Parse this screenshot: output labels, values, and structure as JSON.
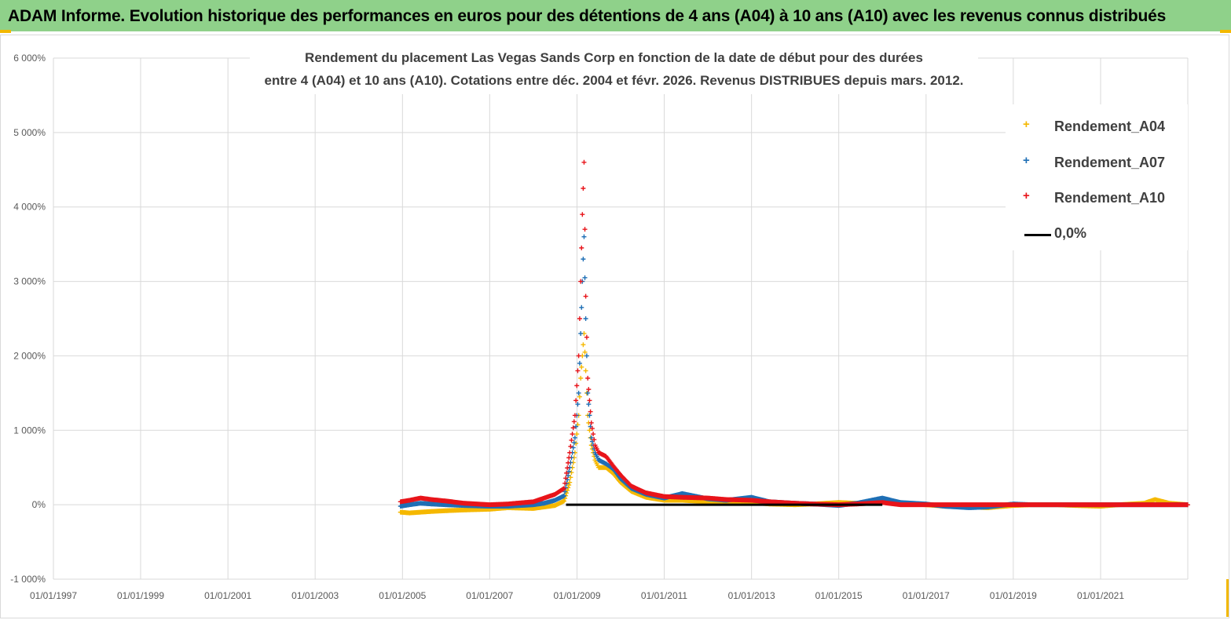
{
  "banner": {
    "text": "ADAM Informe. Evolution historique des performances en euros pour des détentions de 4 ans (A04) à 10 ans (A10) avec les revenus connus distribués"
  },
  "colors": {
    "banner_bg": "#8fd18a",
    "A04": "#f5b800",
    "A07": "#1f6fb5",
    "A10": "#e8141a",
    "zero_line": "#000000"
  },
  "chart_data": {
    "type": "scatter",
    "title_lines": [
      "Rendement du placement Las Vegas Sands Corp en fonction de la date de début pour des durées",
      "entre 4 (A04) et 10 ans (A10).  Cotations entre déc. 2004 et févr. 2026. Revenus DISTRIBUES  depuis mars. 2012."
    ],
    "xlabel": "",
    "ylabel": "",
    "x_ticks": [
      "01/01/1997",
      "01/01/1999",
      "01/01/2001",
      "01/01/2003",
      "01/01/2005",
      "01/01/2007",
      "01/01/2009",
      "01/01/2011",
      "01/01/2013",
      "01/01/2015",
      "01/01/2017",
      "01/01/2019",
      "01/01/2021"
    ],
    "y_ticks": [
      "-1 000%",
      "0%",
      "1 000%",
      "2 000%",
      "3 000%",
      "4 000%",
      "5 000%",
      "6 000%"
    ],
    "xlim": [
      "1997-01-01",
      "2023-01-01"
    ],
    "ylim": [
      -1000,
      6000
    ],
    "grid": true,
    "legend_position": "top-right",
    "series": [
      {
        "name": "Rendement_A04",
        "marker": "+",
        "points": [
          [
            "2004-12-15",
            -100
          ],
          [
            "2005-03-01",
            -110
          ],
          [
            "2005-06-01",
            -100
          ],
          [
            "2005-09-01",
            -90
          ],
          [
            "2006-01-01",
            -80
          ],
          [
            "2006-06-01",
            -70
          ],
          [
            "2007-01-01",
            -60
          ],
          [
            "2007-06-01",
            -40
          ],
          [
            "2008-01-01",
            -50
          ],
          [
            "2008-04-01",
            -30
          ],
          [
            "2008-07-01",
            -10
          ],
          [
            "2008-09-15",
            50
          ],
          [
            "2008-11-01",
            300
          ],
          [
            "2008-12-15",
            700
          ],
          [
            "2009-01-15",
            1200
          ],
          [
            "2009-02-01",
            1700
          ],
          [
            "2009-02-15",
            2000
          ],
          [
            "2009-03-01",
            2300
          ],
          [
            "2009-03-15",
            1800
          ],
          [
            "2009-04-01",
            1200
          ],
          [
            "2009-05-01",
            800
          ],
          [
            "2009-06-01",
            600
          ],
          [
            "2009-07-01",
            500
          ],
          [
            "2009-09-01",
            500
          ],
          [
            "2009-11-01",
            420
          ],
          [
            "2010-01-01",
            300
          ],
          [
            "2010-04-01",
            180
          ],
          [
            "2010-08-01",
            100
          ],
          [
            "2011-01-01",
            60
          ],
          [
            "2011-06-01",
            60
          ],
          [
            "2012-01-01",
            40
          ],
          [
            "2012-06-01",
            20
          ],
          [
            "2013-01-01",
            30
          ],
          [
            "2013-06-01",
            10
          ],
          [
            "2014-01-01",
            0
          ],
          [
            "2014-06-01",
            10
          ],
          [
            "2015-01-01",
            30
          ],
          [
            "2015-06-01",
            20
          ],
          [
            "2016-01-01",
            50
          ],
          [
            "2016-06-01",
            10
          ],
          [
            "2017-01-01",
            0
          ],
          [
            "2017-06-01",
            -20
          ],
          [
            "2018-01-01",
            -30
          ],
          [
            "2018-06-01",
            -40
          ],
          [
            "2019-01-01",
            -10
          ],
          [
            "2019-06-01",
            0
          ],
          [
            "2020-01-01",
            0
          ],
          [
            "2020-06-01",
            -10
          ],
          [
            "2021-01-01",
            -20
          ],
          [
            "2021-06-01",
            0
          ],
          [
            "2022-01-01",
            20
          ],
          [
            "2022-04-01",
            70
          ],
          [
            "2022-08-01",
            20
          ],
          [
            "2022-12-31",
            0
          ]
        ]
      },
      {
        "name": "Rendement_A07",
        "marker": "+",
        "points": [
          [
            "2004-12-15",
            -20
          ],
          [
            "2005-03-01",
            0
          ],
          [
            "2005-06-01",
            20
          ],
          [
            "2005-09-01",
            10
          ],
          [
            "2006-01-01",
            0
          ],
          [
            "2006-06-01",
            -10
          ],
          [
            "2007-01-01",
            -20
          ],
          [
            "2007-06-01",
            -20
          ],
          [
            "2008-01-01",
            0
          ],
          [
            "2008-04-01",
            20
          ],
          [
            "2008-07-01",
            60
          ],
          [
            "2008-09-15",
            120
          ],
          [
            "2008-11-01",
            500
          ],
          [
            "2008-12-15",
            900
          ],
          [
            "2009-01-15",
            1500
          ],
          [
            "2009-02-01",
            2300
          ],
          [
            "2009-02-15",
            3000
          ],
          [
            "2009-03-01",
            3600
          ],
          [
            "2009-03-15",
            2500
          ],
          [
            "2009-04-01",
            1500
          ],
          [
            "2009-05-01",
            900
          ],
          [
            "2009-06-01",
            700
          ],
          [
            "2009-07-01",
            600
          ],
          [
            "2009-09-01",
            550
          ],
          [
            "2009-11-01",
            480
          ],
          [
            "2010-01-01",
            350
          ],
          [
            "2010-04-01",
            220
          ],
          [
            "2010-08-01",
            140
          ],
          [
            "2011-01-01",
            90
          ],
          [
            "2011-06-01",
            150
          ],
          [
            "2012-01-01",
            80
          ],
          [
            "2012-06-01",
            60
          ],
          [
            "2013-01-01",
            100
          ],
          [
            "2013-06-01",
            40
          ],
          [
            "2014-01-01",
            20
          ],
          [
            "2014-06-01",
            10
          ],
          [
            "2015-01-01",
            -10
          ],
          [
            "2015-06-01",
            20
          ],
          [
            "2016-01-01",
            90
          ],
          [
            "2016-06-01",
            30
          ],
          [
            "2017-01-01",
            10
          ],
          [
            "2017-06-01",
            -20
          ],
          [
            "2018-01-01",
            -40
          ],
          [
            "2018-06-01",
            -30
          ],
          [
            "2019-01-01",
            10
          ],
          [
            "2019-06-01",
            0
          ],
          [
            "2020-01-01",
            0
          ],
          [
            "2020-06-01",
            0
          ],
          [
            "2021-01-01",
            0
          ],
          [
            "2021-06-01",
            0
          ],
          [
            "2022-01-01",
            0
          ],
          [
            "2022-12-31",
            0
          ]
        ]
      },
      {
        "name": "Rendement_A10",
        "marker": "+",
        "points": [
          [
            "2004-12-15",
            40
          ],
          [
            "2005-03-01",
            60
          ],
          [
            "2005-06-01",
            90
          ],
          [
            "2005-09-01",
            70
          ],
          [
            "2006-01-01",
            50
          ],
          [
            "2006-06-01",
            20
          ],
          [
            "2007-01-01",
            0
          ],
          [
            "2007-06-01",
            10
          ],
          [
            "2008-01-01",
            40
          ],
          [
            "2008-04-01",
            90
          ],
          [
            "2008-07-01",
            140
          ],
          [
            "2008-09-15",
            220
          ],
          [
            "2008-11-01",
            700
          ],
          [
            "2008-12-15",
            1200
          ],
          [
            "2009-01-15",
            2000
          ],
          [
            "2009-02-01",
            3000
          ],
          [
            "2009-02-15",
            3900
          ],
          [
            "2009-03-01",
            4600
          ],
          [
            "2009-03-15",
            2800
          ],
          [
            "2009-04-01",
            1700
          ],
          [
            "2009-05-01",
            1100
          ],
          [
            "2009-06-01",
            800
          ],
          [
            "2009-07-01",
            700
          ],
          [
            "2009-09-01",
            650
          ],
          [
            "2009-11-01",
            520
          ],
          [
            "2010-01-01",
            400
          ],
          [
            "2010-04-01",
            250
          ],
          [
            "2010-08-01",
            160
          ],
          [
            "2011-01-01",
            110
          ],
          [
            "2011-06-01",
            100
          ],
          [
            "2012-01-01",
            90
          ],
          [
            "2012-06-01",
            70
          ],
          [
            "2013-01-01",
            60
          ],
          [
            "2013-06-01",
            40
          ],
          [
            "2014-01-01",
            20
          ],
          [
            "2014-06-01",
            10
          ],
          [
            "2015-01-01",
            0
          ],
          [
            "2015-06-01",
            10
          ],
          [
            "2016-01-01",
            30
          ],
          [
            "2016-06-01",
            0
          ],
          [
            "2017-01-01",
            0
          ],
          [
            "2017-06-01",
            0
          ],
          [
            "2018-01-01",
            0
          ],
          [
            "2018-06-01",
            0
          ],
          [
            "2019-01-01",
            0
          ],
          [
            "2019-06-01",
            0
          ],
          [
            "2020-01-01",
            0
          ],
          [
            "2020-06-01",
            0
          ],
          [
            "2021-01-01",
            0
          ],
          [
            "2021-06-01",
            0
          ],
          [
            "2022-01-01",
            0
          ],
          [
            "2022-12-31",
            0
          ]
        ]
      },
      {
        "name": "0,0%",
        "marker": "line",
        "points": [
          [
            "2008-10-01",
            0
          ],
          [
            "2016-01-01",
            0
          ]
        ]
      }
    ]
  }
}
